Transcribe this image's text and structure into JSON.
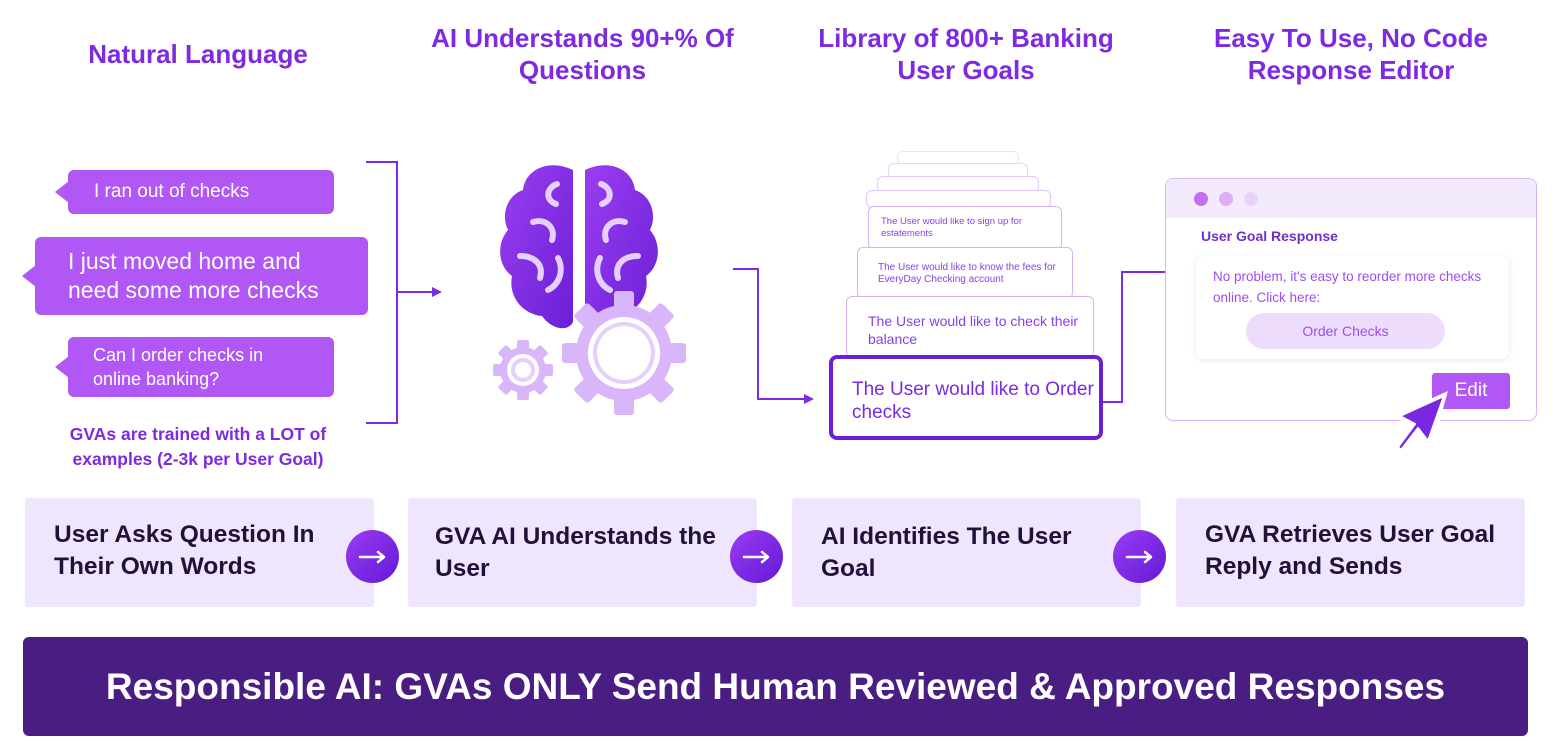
{
  "headings": {
    "natural_language": "Natural Language",
    "ai_understands": "AI Understands 90+% Of Questions",
    "library": "Library of 800+ Banking User Goals",
    "editor": "Easy To Use, No Code Response Editor"
  },
  "questions": [
    "I ran out of checks",
    "I just moved home and need some more checks",
    "Can I order checks in online banking?"
  ],
  "training_note": "GVAs are trained with a LOT of examples (2-3k per User Goal)",
  "user_goals": {
    "sign_up_estatements": "The User would like to sign up for estatements",
    "fees": "The User would like to know the fees for EveryDay Checking account",
    "check_balance": "The User would like to check their balance",
    "order_checks": "The User would like to Order checks"
  },
  "editor_window": {
    "title": "User Goal Response",
    "reply": "No problem, it's easy to reorder more checks online. Click here:",
    "order_button": "Order Checks",
    "edit_button": "Edit"
  },
  "steps": [
    "User Asks Question In Their Own Words",
    "GVA AI Understands the User",
    "AI Identifies The User Goal",
    "GVA Retrieves User Goal Reply and Sends"
  ],
  "banner": "Responsible AI: GVAs ONLY Send Human Reviewed & Approved Responses",
  "icons": [
    "brain-icon",
    "gear-icon",
    "arrow-right-icon",
    "cursor-icon"
  ],
  "colors": {
    "accent": "#7d2ae0",
    "bubble": "#b057f5",
    "step_background": "#efe6fd",
    "banner": "#4a1d83"
  }
}
